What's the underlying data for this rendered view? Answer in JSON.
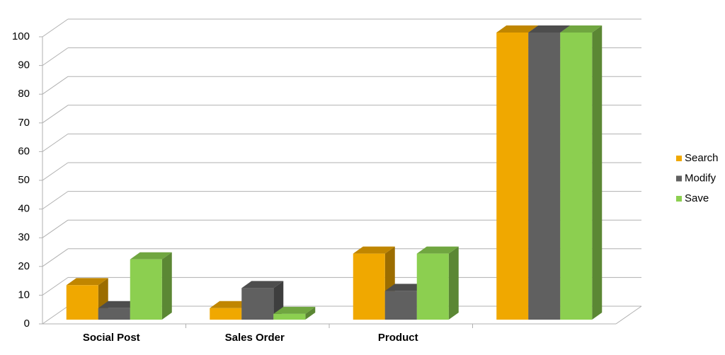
{
  "chart_data": {
    "type": "bar3d",
    "categories": [
      "Social Post",
      "Sales Order",
      "Product",
      null
    ],
    "series": [
      {
        "name": "Search",
        "color": "#f0a800",
        "values": [
          12,
          4,
          23,
          100
        ]
      },
      {
        "name": "Modify",
        "color": "#606060",
        "values": [
          4,
          11,
          10,
          100
        ]
      },
      {
        "name": "Save",
        "color": "#8ccf50",
        "values": [
          21,
          2,
          23,
          100
        ]
      }
    ],
    "ylim": [
      0,
      100
    ],
    "yticks": [
      0,
      10,
      20,
      30,
      40,
      50,
      60,
      70,
      80,
      90,
      100
    ],
    "grid": true
  }
}
